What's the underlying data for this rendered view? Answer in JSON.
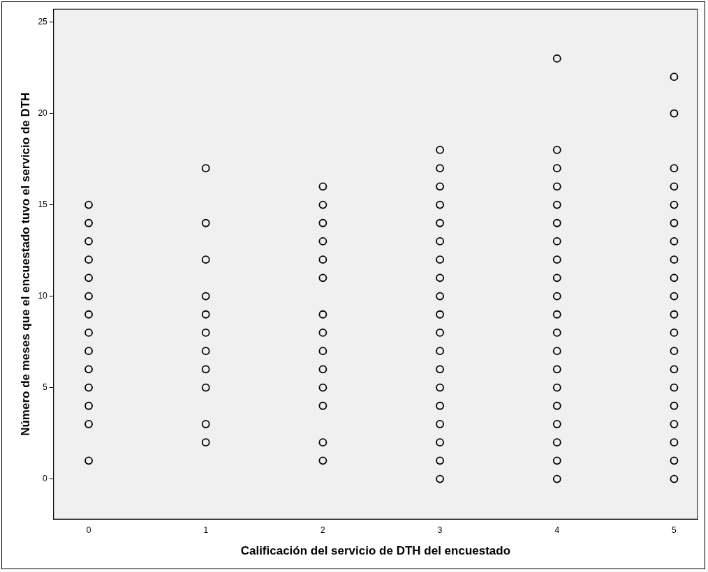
{
  "chart_data": {
    "type": "scatter",
    "xlabel": "Calificación del servicio de DTH del encuestado",
    "ylabel": "Número de meses que el encuestado tuvo el servicio de DTH",
    "xlim": [
      -0.3,
      5.2
    ],
    "xticks": [
      0,
      1,
      2,
      3,
      4,
      5
    ],
    "ylim": [
      -2.2,
      25.7
    ],
    "yticks": [
      0,
      5,
      10,
      15,
      20,
      25
    ],
    "grid": false,
    "legend": false,
    "marker": "circle",
    "series": [
      {
        "color": "#000000",
        "x": [
          0,
          0,
          0,
          0,
          0,
          0,
          0,
          0,
          0,
          0,
          0,
          0,
          0,
          0,
          1,
          1,
          1,
          1,
          1,
          1,
          1,
          1,
          1,
          1,
          1,
          2,
          2,
          2,
          2,
          2,
          2,
          2,
          2,
          2,
          2,
          2,
          2,
          2,
          2,
          3,
          3,
          3,
          3,
          3,
          3,
          3,
          3,
          3,
          3,
          3,
          3,
          3,
          3,
          3,
          3,
          3,
          3,
          3,
          4,
          4,
          4,
          4,
          4,
          4,
          4,
          4,
          4,
          4,
          4,
          4,
          4,
          4,
          4,
          4,
          4,
          4,
          4,
          4,
          5,
          5,
          5,
          5,
          5,
          5,
          5,
          5,
          5,
          5,
          5,
          5,
          5,
          5,
          5,
          5,
          5,
          5,
          5,
          5
        ],
        "values": [
          15,
          14,
          13,
          12,
          11,
          10,
          9,
          8,
          7,
          6,
          5,
          4,
          3,
          1,
          17,
          14,
          12,
          10,
          9,
          8,
          7,
          6,
          5,
          3,
          2,
          16,
          15,
          14,
          13,
          12,
          11,
          9,
          8,
          7,
          6,
          5,
          4,
          2,
          1,
          18,
          17,
          16,
          15,
          14,
          13,
          12,
          11,
          10,
          9,
          8,
          7,
          6,
          5,
          4,
          3,
          2,
          1,
          0,
          23,
          18,
          17,
          16,
          15,
          14,
          13,
          12,
          11,
          10,
          9,
          8,
          7,
          6,
          5,
          4,
          3,
          2,
          1,
          0,
          22,
          20,
          17,
          16,
          15,
          14,
          13,
          12,
          11,
          10,
          9,
          8,
          7,
          6,
          5,
          4,
          3,
          2,
          1,
          0
        ]
      }
    ]
  }
}
